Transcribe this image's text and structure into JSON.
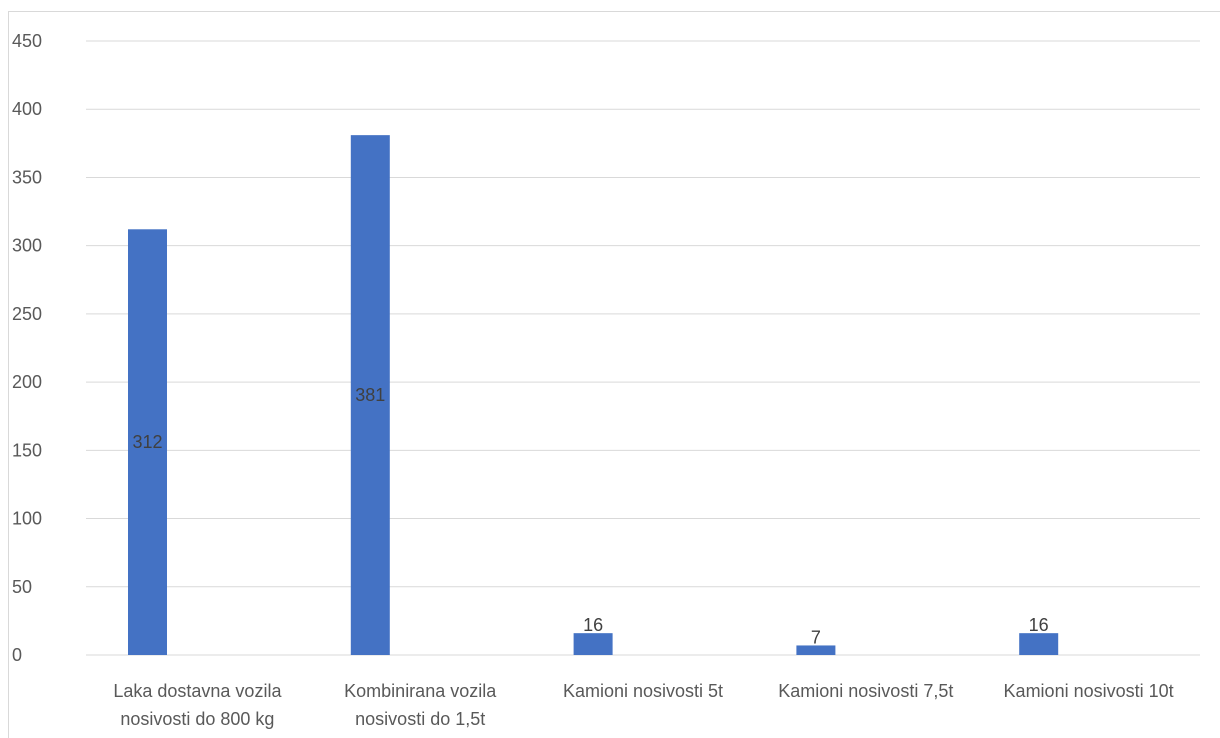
{
  "chart_data": {
    "type": "bar",
    "categories": [
      [
        "Laka dostavna vozila",
        "nosivosti do 800 kg"
      ],
      [
        "Kombinirana vozila",
        "nosivosti do 1,5t"
      ],
      [
        "Kamioni nosivosti 5t"
      ],
      [
        "Kamioni nosivosti 7,5t"
      ],
      [
        "Kamioni nosivosti 10t"
      ]
    ],
    "values": [
      312,
      381,
      16,
      7,
      16
    ],
    "data_labels": [
      "312",
      "381",
      "16",
      "7",
      "16"
    ],
    "ylim": [
      0,
      450
    ],
    "yticks": [
      0,
      50,
      100,
      150,
      200,
      250,
      300,
      350,
      400,
      450
    ],
    "title": "",
    "xlabel": "",
    "ylabel": "",
    "grid": true,
    "legend": "none",
    "colors": {
      "bar": "#4472c4",
      "grid": "#d9d9d9",
      "axis_text": "#595959",
      "label_text": "#404040"
    }
  }
}
